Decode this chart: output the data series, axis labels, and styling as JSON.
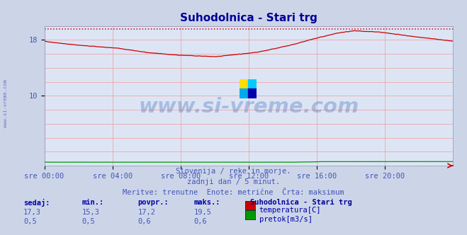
{
  "title": "Suhodolnica - Stari trg",
  "title_color": "#000099",
  "bg_color": "#ccd5e8",
  "plot_bg_color": "#dde5f5",
  "grid_color": "#ee9999",
  "xlabel_color": "#4455bb",
  "ylabel_color": "#4455bb",
  "x_tick_labels": [
    "sre 00:00",
    "sre 04:00",
    "sre 08:00",
    "sre 12:00",
    "sre 16:00",
    "sre 20:00"
  ],
  "x_tick_positions": [
    0,
    288,
    576,
    864,
    1152,
    1440
  ],
  "ylim": [
    0,
    20
  ],
  "ytick_vals": [
    10,
    18
  ],
  "temp_color": "#cc0000",
  "flow_color": "#009900",
  "max_line_color": "#cc0000",
  "max_value": 19.5,
  "watermark_text": "www.si-vreme.com",
  "watermark_color": "#2255aa",
  "watermark_alpha": 0.28,
  "footer_lines": [
    "Slovenija / reke in morje.",
    "zadnji dan / 5 minut.",
    "Meritve: trenutne  Enote: metrične  Črta: maksimum"
  ],
  "footer_color": "#4455bb",
  "table_headers": [
    "sedaj:",
    "min.:",
    "povpr.:",
    "maks.:"
  ],
  "table_header_color": "#0000aa",
  "table_values_temp": [
    "17,3",
    "15,3",
    "17,2",
    "19,5"
  ],
  "table_values_flow": [
    "0,5",
    "0,5",
    "0,6",
    "0,6"
  ],
  "table_value_color": "#4455bb",
  "legend_title": "Suhodolnica - Stari trg",
  "legend_title_color": "#000099",
  "legend_entries": [
    "temperatura[C]",
    "pretok[m3/s]"
  ],
  "legend_colors": [
    "#cc0000",
    "#009900"
  ],
  "side_label": "www.si-vreme.com",
  "side_label_color": "#4455bb",
  "n_points": 1728
}
